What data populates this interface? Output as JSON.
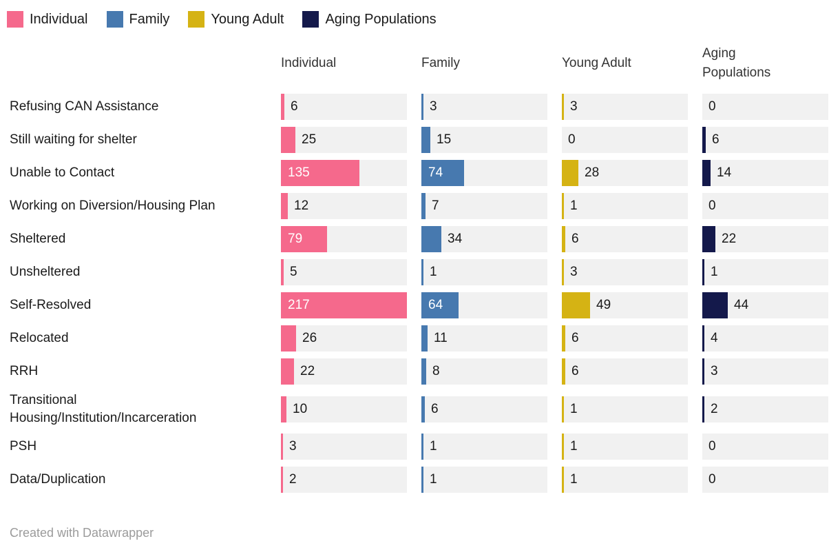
{
  "legend": {
    "items": [
      {
        "label": "Individual",
        "color": "#F5698C"
      },
      {
        "label": "Family",
        "color": "#4779AF"
      },
      {
        "label": "Young Adult",
        "color": "#D5B314"
      },
      {
        "label": "Aging Populations",
        "color": "#14194B"
      }
    ]
  },
  "chart_data": {
    "type": "bar",
    "layout": "split-bars-table",
    "title": "",
    "columns": [
      "Individual",
      "Family",
      "Young Adult",
      "Aging Populations"
    ],
    "categories": [
      "Refusing CAN Assistance",
      "Still waiting for shelter",
      "Unable to Contact",
      "Working on Diversion/Housing Plan",
      "Sheltered",
      "Unsheltered",
      "Self-Resolved",
      "Relocated",
      "RRH",
      "Transitional Housing/Institution/Incarceration",
      "PSH",
      "Data/Duplication"
    ],
    "series": [
      {
        "name": "Individual",
        "color": "#F5698C",
        "values": [
          6,
          25,
          135,
          12,
          79,
          5,
          217,
          26,
          22,
          10,
          3,
          2
        ]
      },
      {
        "name": "Family",
        "color": "#4779AF",
        "values": [
          3,
          15,
          74,
          7,
          34,
          1,
          64,
          11,
          8,
          6,
          1,
          1
        ]
      },
      {
        "name": "Young Adult",
        "color": "#D5B314",
        "values": [
          3,
          0,
          28,
          1,
          6,
          3,
          49,
          6,
          6,
          1,
          1,
          1
        ]
      },
      {
        "name": "Aging Populations",
        "color": "#14194B",
        "values": [
          0,
          6,
          14,
          0,
          22,
          1,
          44,
          4,
          3,
          2,
          0,
          0
        ]
      }
    ],
    "value_axis_max": 217,
    "track_color": "#F1F1F1",
    "grid": false,
    "legend_position": "top-left"
  },
  "footer": {
    "credit": "Created with Datawrapper"
  }
}
